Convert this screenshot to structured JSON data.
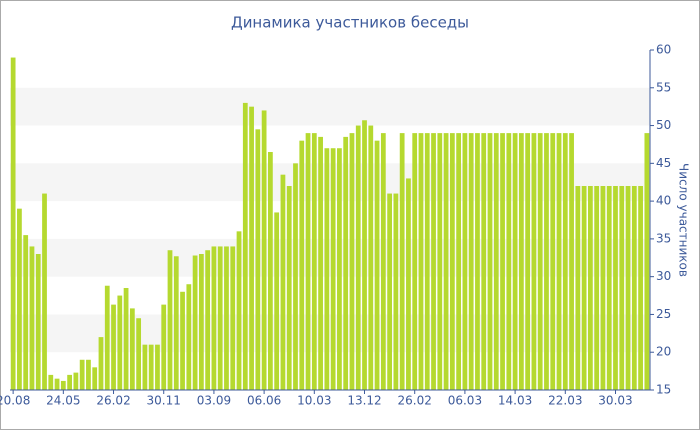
{
  "chart_data": {
    "type": "bar",
    "title": "Динамика участников беседы",
    "y_label": "Число участников",
    "categories": [
      "20.08",
      null,
      null,
      null,
      null,
      null,
      null,
      null,
      "24.05",
      null,
      null,
      null,
      null,
      null,
      null,
      null,
      "26.02",
      null,
      null,
      null,
      null,
      null,
      null,
      null,
      "30.11",
      null,
      null,
      null,
      null,
      null,
      null,
      null,
      "03.09",
      null,
      null,
      null,
      null,
      null,
      null,
      null,
      "06.06",
      null,
      null,
      null,
      null,
      null,
      null,
      null,
      "10.03",
      null,
      null,
      null,
      null,
      null,
      null,
      null,
      "13.12",
      null,
      null,
      null,
      null,
      null,
      null,
      null,
      "26.02",
      null,
      null,
      null,
      null,
      null,
      null,
      null,
      "06.03",
      null,
      null,
      null,
      null,
      null,
      null,
      null,
      "14.03",
      null,
      null,
      null,
      null,
      null,
      null,
      null,
      "22.03",
      null,
      null,
      null,
      null,
      null,
      null,
      null,
      "30.03",
      null,
      null,
      null,
      null,
      null
    ],
    "values": [
      59,
      39,
      35.5,
      34,
      33,
      41,
      17,
      16.5,
      16.2,
      17,
      17.3,
      19,
      19,
      18,
      22,
      28.8,
      26.3,
      27.5,
      28.5,
      25.8,
      24.5,
      21,
      21,
      21,
      26.3,
      33.5,
      32.7,
      28,
      29,
      32.8,
      33,
      33.5,
      34,
      34,
      34,
      34,
      36,
      53,
      52.5,
      49.5,
      52,
      46.5,
      38.5,
      43.5,
      42,
      45,
      48,
      49,
      49,
      48.5,
      47,
      47,
      47,
      48.5,
      49,
      50,
      50.7,
      50,
      48,
      49,
      41,
      41,
      49,
      43,
      49,
      49,
      49,
      49,
      49,
      49,
      49,
      49,
      49,
      49,
      49,
      49,
      49,
      49,
      49,
      49,
      49,
      49,
      49,
      49,
      49,
      49,
      49,
      49,
      49,
      49,
      42,
      42,
      42,
      42,
      42,
      42,
      42,
      42,
      42,
      42,
      42,
      49
    ],
    "color": "#b5d92f",
    "ylim": [
      15,
      60
    ],
    "yticks": [
      15,
      20,
      25,
      30,
      35,
      40,
      45,
      50,
      55,
      60
    ],
    "y_axis_side": "right",
    "grid": "bands",
    "band_color": "#f5f5f5"
  }
}
